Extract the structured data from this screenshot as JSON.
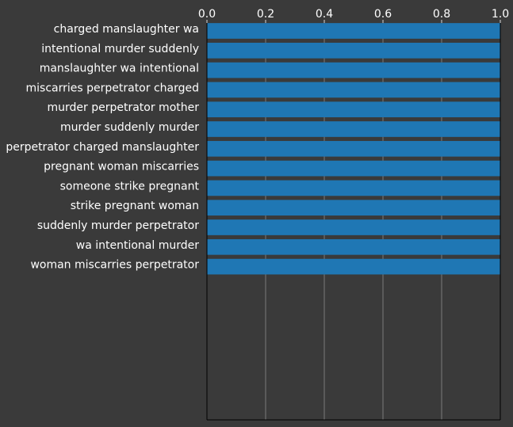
{
  "chart_data": {
    "type": "bar",
    "orientation": "horizontal",
    "x_axis_position": "top",
    "categories": [
      "charged manslaughter wa",
      "intentional murder suddenly",
      "manslaughter wa intentional",
      "miscarries perpetrator charged",
      "murder perpetrator mother",
      "murder suddenly murder",
      "perpetrator charged manslaughter",
      "pregnant woman miscarries",
      "someone strike pregnant",
      "strike pregnant woman",
      "suddenly murder perpetrator",
      "wa intentional murder",
      "woman miscarries perpetrator"
    ],
    "values": [
      1.0,
      1.0,
      1.0,
      1.0,
      1.0,
      1.0,
      1.0,
      1.0,
      1.0,
      1.0,
      1.0,
      1.0,
      1.0
    ],
    "xlim": [
      0.0,
      1.0
    ],
    "xticks": [
      "0.0",
      "0.2",
      "0.4",
      "0.6",
      "0.8",
      "1.0"
    ],
    "title": "",
    "xlabel": "",
    "ylabel": "",
    "grid": "vertical",
    "bar_color": "#1f77b4",
    "background_color": "#3a3a3a",
    "grid_color": "#8a8a8a",
    "text_color": "#ffffff"
  }
}
